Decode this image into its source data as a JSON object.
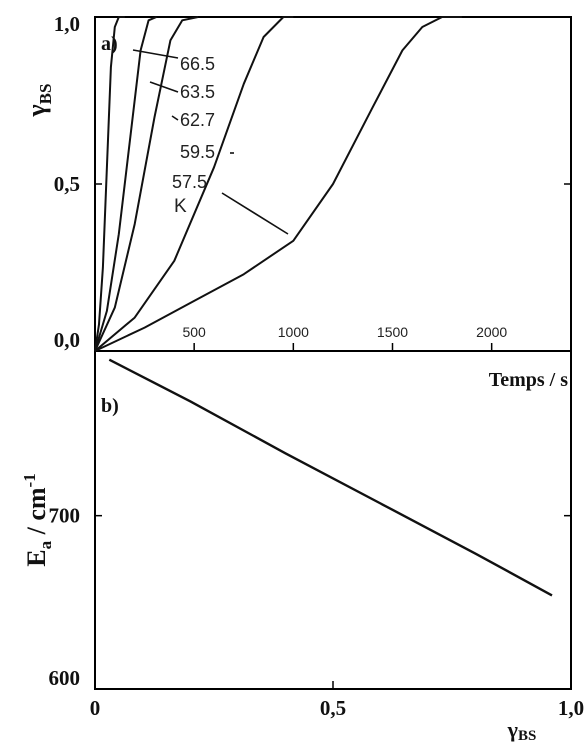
{
  "chart_data": [
    {
      "panel_label": "a)",
      "type": "line",
      "xlabel": "Temps / s",
      "ylabel": "γ",
      "ylabel_sub": "BS",
      "xlim": [
        0,
        2400
      ],
      "ylim": [
        0,
        1
      ],
      "x_ticks": [
        500,
        1000,
        1500,
        2000
      ],
      "y_ticks": [
        {
          "value": 0,
          "label": "0,0"
        },
        {
          "value": 0.5,
          "label": "0,5"
        },
        {
          "value": 1,
          "label": "1,0"
        }
      ],
      "grid": false,
      "series": [
        {
          "name": "66.5",
          "x": [
            0,
            20,
            40,
            60,
            80,
            100,
            120,
            150
          ],
          "y": [
            0,
            0.08,
            0.25,
            0.55,
            0.85,
            0.97,
            1.0,
            1.0
          ]
        },
        {
          "name": "63.5",
          "x": [
            0,
            60,
            120,
            180,
            230,
            270,
            310
          ],
          "y": [
            0,
            0.12,
            0.35,
            0.65,
            0.9,
            0.99,
            1.0
          ]
        },
        {
          "name": "62.7",
          "x": [
            0,
            100,
            200,
            300,
            380,
            440,
            520
          ],
          "y": [
            0,
            0.13,
            0.38,
            0.7,
            0.93,
            0.99,
            1.0
          ]
        },
        {
          "name": "59.5",
          "x": [
            0,
            200,
            400,
            600,
            750,
            850,
            950,
            1000
          ],
          "y": [
            0,
            0.1,
            0.27,
            0.55,
            0.8,
            0.94,
            1.0,
            1.0
          ]
        },
        {
          "name": "57.5",
          "x": [
            0,
            250,
            500,
            750,
            1000,
            1200,
            1400,
            1550,
            1650,
            1750,
            1850
          ],
          "y": [
            0,
            0.07,
            0.15,
            0.23,
            0.33,
            0.5,
            0.73,
            0.9,
            0.97,
            1.0,
            1.0
          ]
        }
      ],
      "annotations": {
        "unit_label": "K"
      }
    },
    {
      "panel_label": "b)",
      "type": "line",
      "xlabel": "γ",
      "xlabel_sub": "BS",
      "ylabel": "E",
      "ylabel_sub": "a",
      "ylabel_unit": " / cm",
      "ylabel_sup": "-1",
      "xlim": [
        0,
        1
      ],
      "ylim": [
        600,
        795
      ],
      "x_ticks": [
        {
          "value": 0,
          "label": "0"
        },
        {
          "value": 0.5,
          "label": "0,5"
        },
        {
          "value": 1,
          "label": "1,0"
        }
      ],
      "y_ticks": [
        {
          "value": 600,
          "label": "600"
        },
        {
          "value": 700,
          "label": "700"
        }
      ],
      "grid": false,
      "series": [
        {
          "x": [
            0.03,
            0.2,
            0.4,
            0.6,
            0.8,
            0.96
          ],
          "y": [
            790,
            766,
            736,
            707,
            678,
            654
          ]
        }
      ]
    }
  ]
}
